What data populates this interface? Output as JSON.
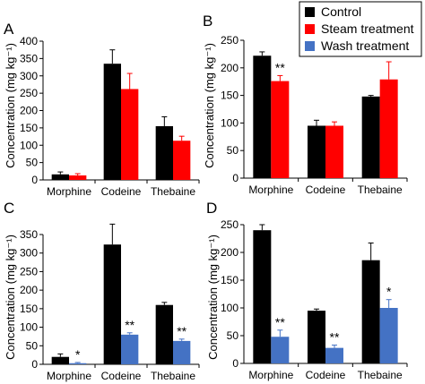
{
  "legend": {
    "placement": "top-right",
    "entries": [
      {
        "label": "Control",
        "color": "#000000"
      },
      {
        "label": "Steam treatment",
        "color": "#ff0000"
      },
      {
        "label": "Wash treatment",
        "color": "#4472c4"
      }
    ]
  },
  "chart_data": [
    {
      "panel": "A",
      "type": "bar",
      "categories": [
        "Morphine",
        "Codeine",
        "Thebaine"
      ],
      "ylabel": "Concentration (mg kg⁻¹)",
      "ylim": [
        0,
        400
      ],
      "yticks": [
        0,
        50,
        100,
        150,
        200,
        250,
        300,
        350,
        400
      ],
      "series": [
        {
          "name": "Control",
          "color": "#000000",
          "values": [
            16,
            335,
            155
          ],
          "errors": [
            7,
            40,
            27
          ],
          "sig": [
            "",
            "",
            ""
          ]
        },
        {
          "name": "Steam treatment",
          "color": "#ff0000",
          "values": [
            13,
            262,
            113
          ],
          "errors": [
            5,
            45,
            13
          ],
          "sig": [
            "",
            "",
            ""
          ]
        }
      ]
    },
    {
      "panel": "B",
      "type": "bar",
      "categories": [
        "Morphine",
        "Codeine",
        "Thebaine"
      ],
      "ylabel": "Concentration (mg kg⁻¹)",
      "ylim": [
        0,
        250
      ],
      "yticks": [
        0,
        50,
        100,
        150,
        200,
        250
      ],
      "series": [
        {
          "name": "Control",
          "color": "#000000",
          "values": [
            222,
            95,
            148
          ],
          "errors": [
            7,
            10,
            2
          ],
          "sig": [
            "",
            "",
            ""
          ]
        },
        {
          "name": "Steam treatment",
          "color": "#ff0000",
          "values": [
            176,
            95,
            179
          ],
          "errors": [
            10,
            7,
            32
          ],
          "sig": [
            "**",
            "",
            ""
          ]
        }
      ]
    },
    {
      "panel": "C",
      "type": "bar",
      "categories": [
        "Morphine",
        "Codeine",
        "Thebaine"
      ],
      "ylabel": "Concentration (mg kg⁻¹)",
      "ylim": [
        0,
        350
      ],
      "yticks": [
        0,
        50,
        100,
        150,
        200,
        250,
        300,
        350
      ],
      "series": [
        {
          "name": "Control",
          "color": "#000000",
          "values": [
            20,
            323,
            160
          ],
          "errors": [
            8,
            55,
            7
          ],
          "sig": [
            "",
            "",
            ""
          ]
        },
        {
          "name": "Wash treatment",
          "color": "#4472c4",
          "values": [
            3,
            80,
            63
          ],
          "errors": [
            2,
            5,
            5
          ],
          "sig": [
            "*",
            "**",
            "**"
          ]
        }
      ]
    },
    {
      "panel": "D",
      "type": "bar",
      "categories": [
        "Morphine",
        "Codeine",
        "Thebaine"
      ],
      "ylabel": "Concentration (mg kg⁻¹)",
      "ylim": [
        0,
        250
      ],
      "yticks": [
        0,
        50,
        100,
        150,
        200,
        250
      ],
      "series": [
        {
          "name": "Control",
          "color": "#000000",
          "values": [
            240,
            95,
            186
          ],
          "errors": [
            10,
            3,
            31
          ],
          "sig": [
            "",
            "",
            ""
          ]
        },
        {
          "name": "Wash treatment",
          "color": "#4472c4",
          "values": [
            48,
            28,
            100
          ],
          "errors": [
            12,
            5,
            15
          ],
          "sig": [
            "**",
            "**",
            "*"
          ]
        }
      ]
    }
  ]
}
